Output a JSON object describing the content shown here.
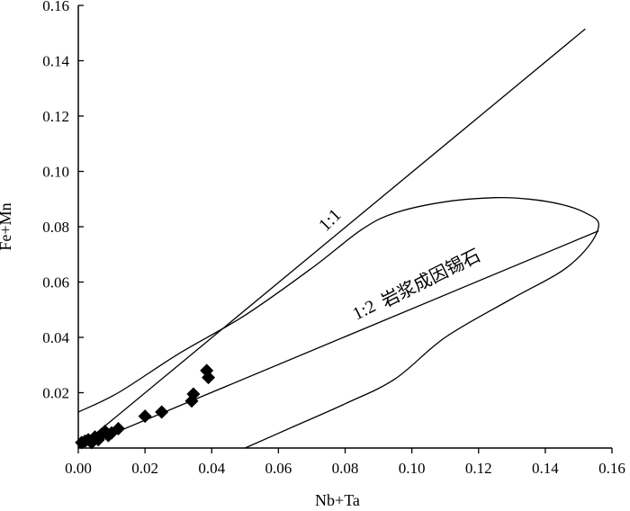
{
  "chart_data": {
    "type": "scatter",
    "xlabel": "Nb+Ta",
    "ylabel": "Fe+Mn",
    "xlim": [
      0,
      0.16
    ],
    "ylim": [
      0,
      0.16
    ],
    "xticks": [
      "0.00",
      "0.02",
      "0.04",
      "0.06",
      "0.08",
      "0.10",
      "0.12",
      "0.14",
      "0.16"
    ],
    "yticks": [
      "0.02",
      "0.04",
      "0.06",
      "0.08",
      "0.10",
      "0.12",
      "0.14",
      "0.16"
    ],
    "points": [
      {
        "x": 0.001,
        "y": 0.002
      },
      {
        "x": 0.002,
        "y": 0.0025
      },
      {
        "x": 0.003,
        "y": 0.003
      },
      {
        "x": 0.004,
        "y": 0.002
      },
      {
        "x": 0.005,
        "y": 0.004
      },
      {
        "x": 0.006,
        "y": 0.003
      },
      {
        "x": 0.007,
        "y": 0.005
      },
      {
        "x": 0.008,
        "y": 0.006
      },
      {
        "x": 0.009,
        "y": 0.0045
      },
      {
        "x": 0.01,
        "y": 0.0055
      },
      {
        "x": 0.012,
        "y": 0.007
      },
      {
        "x": 0.02,
        "y": 0.0115
      },
      {
        "x": 0.025,
        "y": 0.013
      },
      {
        "x": 0.034,
        "y": 0.017
      },
      {
        "x": 0.0345,
        "y": 0.0195
      },
      {
        "x": 0.0385,
        "y": 0.028
      },
      {
        "x": 0.039,
        "y": 0.0255
      }
    ],
    "lines": [
      {
        "label": "1:1",
        "x": [
          0.0,
          0.152
        ],
        "y": [
          0.0,
          0.1515
        ]
      },
      {
        "label": "1:2 岩浆成因锡石",
        "x": [
          0.0,
          0.156
        ],
        "y": [
          0.0,
          0.0785
        ]
      }
    ],
    "magmatic_field": {
      "x": [
        0.0,
        0.012,
        0.03,
        0.05,
        0.07,
        0.085,
        0.095,
        0.11,
        0.125,
        0.135,
        0.145,
        0.152,
        0.156,
        0.153,
        0.145,
        0.13,
        0.11,
        0.095,
        0.08,
        0.065,
        0.05
      ],
      "y": [
        0.013,
        0.02,
        0.034,
        0.048,
        0.065,
        0.079,
        0.085,
        0.089,
        0.0905,
        0.09,
        0.088,
        0.085,
        0.081,
        0.073,
        0.064,
        0.054,
        0.04,
        0.025,
        0.016,
        0.008,
        0.0
      ]
    },
    "annotations": [
      "1:1",
      "1:2",
      "岩浆成因锡石"
    ]
  }
}
